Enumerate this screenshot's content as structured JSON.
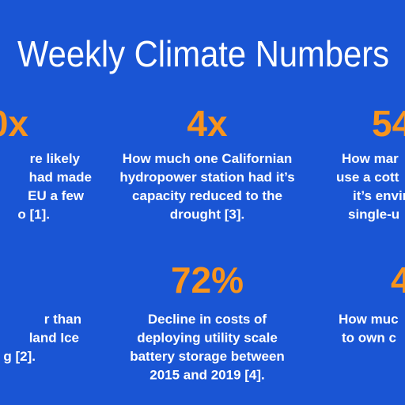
{
  "header": {
    "title": "Weekly Climate Numbers"
  },
  "stats": [
    {
      "number": "0x",
      "lines": [
        "re likely",
        "had made",
        "EU a few",
        "o [1]."
      ]
    },
    {
      "number": "4x",
      "lines": [
        "How much one Californian",
        "hydropower station had it’s",
        "capacity reduced to the",
        "drought [3]."
      ]
    },
    {
      "number": "54",
      "lines": [
        "How mar",
        "use a cott",
        "it’s envir",
        "single-u"
      ]
    },
    {
      "number": "",
      "lines": [
        "r than",
        "land Ice",
        "g [2]."
      ]
    },
    {
      "number": "72%",
      "lines": [
        "Decline in costs of",
        "deploying utility scale",
        "battery storage between",
        "2015 and 2019 [4]."
      ]
    },
    {
      "number": "4",
      "lines": [
        "How muc",
        "to own c"
      ]
    }
  ]
}
